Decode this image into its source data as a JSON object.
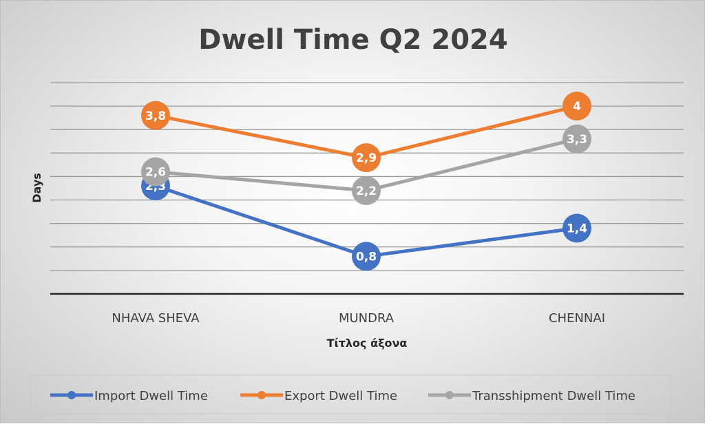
{
  "chart_data": {
    "type": "line",
    "title": "Dwell Time Q2 2024",
    "xlabel": "Τίτλος άξονα",
    "ylabel": "Days",
    "categories": [
      "NHAVA SHEVA",
      "MUNDRA",
      "CHENNAI"
    ],
    "ylim": [
      0,
      4.5
    ],
    "y_gridlines": [
      0.5,
      1,
      1.5,
      2,
      2.5,
      3,
      3.5,
      4,
      4.5
    ],
    "y_tick_labels_shown": false,
    "grid": true,
    "legend_position": "bottom",
    "series": [
      {
        "name": "Import Dwell Time",
        "color": "#4472C4",
        "values": [
          2.3,
          0.8,
          1.4
        ],
        "labels": [
          "2,3",
          "0,8",
          "1,4"
        ]
      },
      {
        "name": "Export Dwell Time",
        "color": "#ED7D31",
        "values": [
          3.8,
          2.9,
          4
        ],
        "labels": [
          "3,8",
          "2,9",
          "4"
        ]
      },
      {
        "name": "Transshipment Dwell Time",
        "color": "#A5A5A5",
        "values": [
          2.6,
          2.2,
          3.3
        ],
        "labels": [
          "2,6",
          "2,2",
          "3,3"
        ]
      }
    ]
  }
}
